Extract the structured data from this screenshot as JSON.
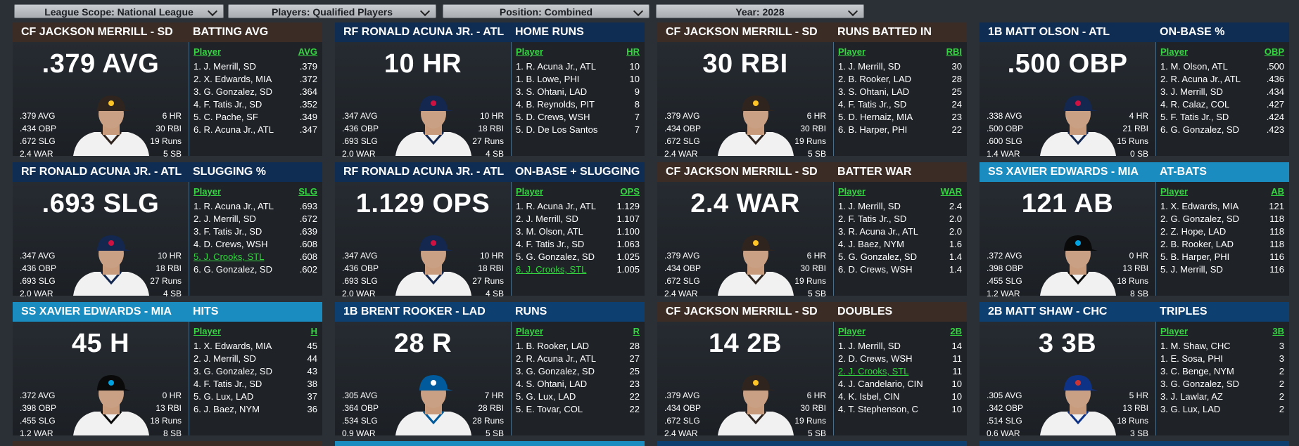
{
  "filters": [
    {
      "label": "League Scope: National League"
    },
    {
      "label": "Players: Qualified Players"
    },
    {
      "label": "Position: Combined"
    },
    {
      "label": "Year: 2028"
    }
  ],
  "cards": [
    {
      "name": "CF JACKSON MERRILL - SD",
      "category": "BATTING AVG",
      "big": "",
      ".379 AVG": "",
      "value": ".379 AVG",
      "theme": "brown",
      "team": "SD",
      "statsL": [
        ".379 AVG",
        ".434 OBP",
        ".672 SLG",
        "2.4 WAR"
      ],
      "statsR": [
        "6 HR",
        "30 RBI",
        "19 Runs",
        "5 SB"
      ],
      "colPlayer": "Player",
      "colValue": "AVG",
      "rows": [
        {
          "n": "1. J. Merrill, SD",
          "v": ".379"
        },
        {
          "n": "2. X. Edwards, MIA",
          "v": ".372"
        },
        {
          "n": "3. G. Gonzalez, SD",
          "v": ".364"
        },
        {
          "n": "4. F. Tatis Jr., SD",
          "v": ".352"
        },
        {
          "n": "5. C. Pache, SF",
          "v": ".349"
        },
        {
          "n": "6. R. Acuna Jr., ATL",
          "v": ".347"
        }
      ]
    },
    {
      "name": "RF RONALD ACUNA JR. - ATL",
      "category": "HOME RUNS",
      "value": "10 HR",
      "theme": "navy",
      "team": "ATL",
      "statsL": [
        ".347 AVG",
        ".436 OBP",
        ".693 SLG",
        "2.0 WAR"
      ],
      "statsR": [
        "10 HR",
        "18 RBI",
        "27 Runs",
        "4 SB"
      ],
      "colPlayer": "Player",
      "colValue": "HR",
      "rows": [
        {
          "n": "1. R. Acuna Jr., ATL",
          "v": "10"
        },
        {
          "n": "1. B. Lowe, PHI",
          "v": "10"
        },
        {
          "n": "3. S. Ohtani, LAD",
          "v": "9"
        },
        {
          "n": "4. B. Reynolds, PIT",
          "v": "8"
        },
        {
          "n": "5. D. Crews, WSH",
          "v": "7"
        },
        {
          "n": "5. D. De Los Santos",
          "v": "7"
        }
      ]
    },
    {
      "name": "CF JACKSON MERRILL - SD",
      "category": "RUNS BATTED IN",
      "value": "30 RBI",
      "theme": "brown",
      "team": "SD",
      "statsL": [
        ".379 AVG",
        ".434 OBP",
        ".672 SLG",
        "2.4 WAR"
      ],
      "statsR": [
        "6 HR",
        "30 RBI",
        "19 Runs",
        "5 SB"
      ],
      "colPlayer": "Player",
      "colValue": "RBI",
      "rows": [
        {
          "n": "1. J. Merrill, SD",
          "v": "30"
        },
        {
          "n": "2. B. Rooker, LAD",
          "v": "28"
        },
        {
          "n": "3. S. Ohtani, LAD",
          "v": "25"
        },
        {
          "n": "4. F. Tatis Jr., SD",
          "v": "24"
        },
        {
          "n": "5. D. Hernaiz, MIA",
          "v": "23"
        },
        {
          "n": "6. B. Harper, PHI",
          "v": "22"
        }
      ]
    },
    {
      "name": "1B MATT OLSON - ATL",
      "category": "ON-BASE %",
      "value": ".500 OBP",
      "theme": "navy",
      "team": "ATL",
      "statsL": [
        ".338 AVG",
        ".500 OBP",
        ".600 SLG",
        "1.4 WAR"
      ],
      "statsR": [
        "4 HR",
        "21 RBI",
        "15 Runs",
        "0 SB"
      ],
      "colPlayer": "Player",
      "colValue": "OBP",
      "rows": [
        {
          "n": "1. M. Olson, ATL",
          "v": ".500"
        },
        {
          "n": "2. R. Acuna Jr., ATL",
          "v": ".436"
        },
        {
          "n": "3. J. Merrill, SD",
          "v": ".434"
        },
        {
          "n": "4. R. Calaz, COL",
          "v": ".427"
        },
        {
          "n": "5. F. Tatis Jr., SD",
          "v": ".424"
        },
        {
          "n": "6. G. Gonzalez, SD",
          "v": ".423"
        }
      ]
    },
    {
      "name": "RF RONALD ACUNA JR. - ATL",
      "category": "SLUGGING %",
      "value": ".693 SLG",
      "theme": "navy",
      "team": "ATL",
      "statsL": [
        ".347 AVG",
        ".436 OBP",
        ".693 SLG",
        "2.0 WAR"
      ],
      "statsR": [
        "10 HR",
        "18 RBI",
        "27 Runs",
        "4 SB"
      ],
      "colPlayer": "Player",
      "colValue": "SLG",
      "rows": [
        {
          "n": "1. R. Acuna Jr., ATL",
          "v": ".693"
        },
        {
          "n": "2. J. Merrill, SD",
          "v": ".672"
        },
        {
          "n": "3. F. Tatis Jr., SD",
          "v": ".639"
        },
        {
          "n": "4. D. Crews, WSH",
          "v": ".608"
        },
        {
          "n": "5. J. Crooks, STL",
          "v": ".608",
          "hl": true
        },
        {
          "n": "6. G. Gonzalez, SD",
          "v": ".602"
        }
      ]
    },
    {
      "name": "RF RONALD ACUNA JR. - ATL",
      "category": "ON-BASE + SLUGGING",
      "value": "1.129 OPS",
      "theme": "navy",
      "team": "ATL",
      "statsL": [
        ".347 AVG",
        ".436 OBP",
        ".693 SLG",
        "2.0 WAR"
      ],
      "statsR": [
        "10 HR",
        "18 RBI",
        "27 Runs",
        "4 SB"
      ],
      "colPlayer": "Player",
      "colValue": "OPS",
      "rows": [
        {
          "n": "1. R. Acuna Jr., ATL",
          "v": "1.129"
        },
        {
          "n": "2. J. Merrill, SD",
          "v": "1.107"
        },
        {
          "n": "3. M. Olson, ATL",
          "v": "1.100"
        },
        {
          "n": "4. F. Tatis Jr., SD",
          "v": "1.063"
        },
        {
          "n": "5. G. Gonzalez, SD",
          "v": "1.025"
        },
        {
          "n": "6. J. Crooks, STL",
          "v": "1.005",
          "hl": true
        }
      ]
    },
    {
      "name": "CF JACKSON MERRILL - SD",
      "category": "BATTER WAR",
      "value": "2.4 WAR",
      "theme": "brown",
      "team": "SD",
      "statsL": [
        ".379 AVG",
        ".434 OBP",
        ".672 SLG",
        "2.4 WAR"
      ],
      "statsR": [
        "6 HR",
        "30 RBI",
        "19 Runs",
        "5 SB"
      ],
      "colPlayer": "Player",
      "colValue": "WAR",
      "rows": [
        {
          "n": "1. J. Merrill, SD",
          "v": "2.4"
        },
        {
          "n": "2. F. Tatis Jr., SD",
          "v": "2.0"
        },
        {
          "n": "3. R. Acuna Jr., ATL",
          "v": "2.0"
        },
        {
          "n": "4. J. Baez, NYM",
          "v": "1.6"
        },
        {
          "n": "5. G. Gonzalez, SD",
          "v": "1.4"
        },
        {
          "n": "6. D. Crews, WSH",
          "v": "1.4"
        }
      ]
    },
    {
      "name": "SS XAVIER EDWARDS - MIA",
      "category": "AT-BATS",
      "value": "121 AB",
      "theme": "teal",
      "team": "MIA",
      "statsL": [
        ".372 AVG",
        ".398 OBP",
        ".455 SLG",
        "1.2 WAR"
      ],
      "statsR": [
        "0 HR",
        "13 RBI",
        "18 Runs",
        "8 SB"
      ],
      "colPlayer": "Player",
      "colValue": "AB",
      "rows": [
        {
          "n": "1. X. Edwards, MIA",
          "v": "121"
        },
        {
          "n": "2. G. Gonzalez, SD",
          "v": "118"
        },
        {
          "n": "2. Z. Hope, LAD",
          "v": "118"
        },
        {
          "n": "2. B. Rooker, LAD",
          "v": "118"
        },
        {
          "n": "5. B. Harper, PHI",
          "v": "116"
        },
        {
          "n": "5. J. Merrill, SD",
          "v": "116"
        }
      ]
    },
    {
      "name": "SS XAVIER EDWARDS - MIA",
      "category": "HITS",
      "value": "45 H",
      "theme": "teal",
      "team": "MIA",
      "statsL": [
        ".372 AVG",
        ".398 OBP",
        ".455 SLG",
        "1.2 WAR"
      ],
      "statsR": [
        "0 HR",
        "13 RBI",
        "18 Runs",
        "8 SB"
      ],
      "colPlayer": "Player",
      "colValue": "H",
      "rows": [
        {
          "n": "1. X. Edwards, MIA",
          "v": "45"
        },
        {
          "n": "2. J. Merrill, SD",
          "v": "44"
        },
        {
          "n": "3. G. Gonzalez, SD",
          "v": "43"
        },
        {
          "n": "4. F. Tatis Jr., SD",
          "v": "38"
        },
        {
          "n": "5. G. Lux, LAD",
          "v": "37"
        },
        {
          "n": "6. J. Baez, NYM",
          "v": "36"
        }
      ]
    },
    {
      "name": "1B BRENT ROOKER - LAD",
      "category": "RUNS",
      "value": "28 R",
      "theme": "mblue",
      "team": "LAD",
      "statsL": [
        ".305 AVG",
        ".364 OBP",
        ".534 SLG",
        "0.9 WAR"
      ],
      "statsR": [
        "7 HR",
        "28 RBI",
        "28 Runs",
        "5 SB"
      ],
      "colPlayer": "Player",
      "colValue": "R",
      "rows": [
        {
          "n": "1. B. Rooker, LAD",
          "v": "28"
        },
        {
          "n": "2. R. Acuna Jr., ATL",
          "v": "27"
        },
        {
          "n": "3. G. Gonzalez, SD",
          "v": "25"
        },
        {
          "n": "4. S. Ohtani, LAD",
          "v": "23"
        },
        {
          "n": "5. G. Lux, LAD",
          "v": "22"
        },
        {
          "n": "5. E. Tovar, COL",
          "v": "22"
        }
      ]
    },
    {
      "name": "CF JACKSON MERRILL - SD",
      "category": "DOUBLES",
      "value": "14 2B",
      "theme": "brown",
      "team": "SD",
      "statsL": [
        ".379 AVG",
        ".434 OBP",
        ".672 SLG",
        "2.4 WAR"
      ],
      "statsR": [
        "6 HR",
        "30 RBI",
        "19 Runs",
        "5 SB"
      ],
      "colPlayer": "Player",
      "colValue": "2B",
      "rows": [
        {
          "n": "1. J. Merrill, SD",
          "v": "14"
        },
        {
          "n": "2. D. Crews, WSH",
          "v": "11"
        },
        {
          "n": "2. J. Crooks, STL",
          "v": "11",
          "hl": true
        },
        {
          "n": "4. J. Candelario, CIN",
          "v": "10"
        },
        {
          "n": "4. K. Isbel, CIN",
          "v": "10"
        },
        {
          "n": "4. T. Stephenson, C",
          "v": "10"
        }
      ]
    },
    {
      "name": "2B MATT SHAW - CHC",
      "category": "TRIPLES",
      "value": "3 3B",
      "theme": "lblue",
      "team": "CHC",
      "statsL": [
        ".305 AVG",
        ".342 OBP",
        ".514 SLG",
        "0.6 WAR"
      ],
      "statsR": [
        "5 HR",
        "13 RBI",
        "18 Runs",
        "3 SB"
      ],
      "colPlayer": "Player",
      "colValue": "3B",
      "rows": [
        {
          "n": "1. M. Shaw, CHC",
          "v": "3"
        },
        {
          "n": "1. E. Sosa, PHI",
          "v": "3"
        },
        {
          "n": "3. C. Benge, NYM",
          "v": "2"
        },
        {
          "n": "3. G. Gonzalez, SD",
          "v": "2"
        },
        {
          "n": "3. J. Lawlar, AZ",
          "v": "2"
        },
        {
          "n": "3. G. Lux, LAD",
          "v": "2"
        }
      ]
    }
  ],
  "colors": {
    "SD": "#2f241e",
    "ATL": "#13274f",
    "MIA": "#0a0a0a",
    "LAD": "#005a9c",
    "CHC": "#0e3386",
    "SDlogo": "#ffc425",
    "ATLlogo": "#ce1141",
    "MIAlogo": "#00a3e0",
    "LADlogo": "#ffffff",
    "CHClogo": "#cc3433"
  }
}
